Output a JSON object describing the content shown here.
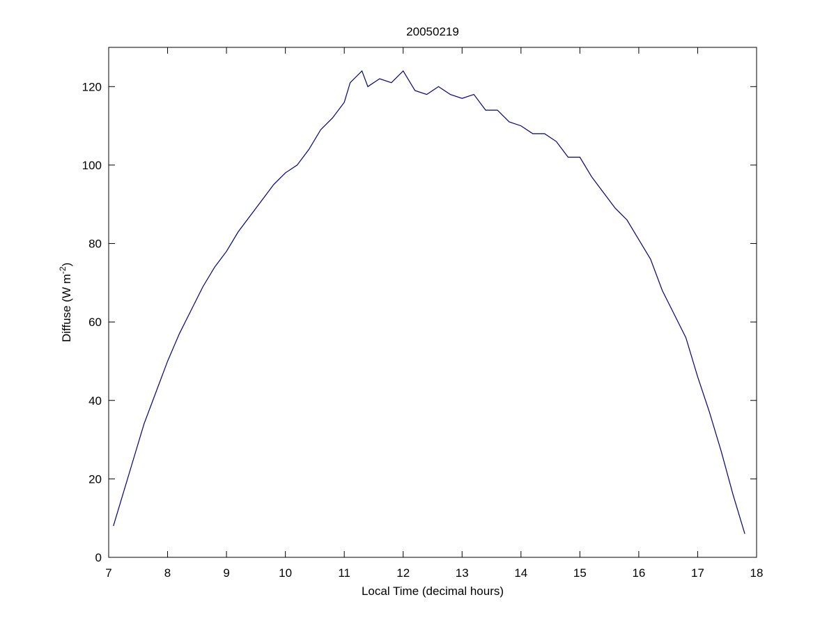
{
  "chart_data": {
    "type": "line",
    "title": "20050219",
    "xlabel": "Local Time (decimal hours)",
    "ylabel": [
      "Diffuse (W m",
      "-2",
      ")"
    ],
    "x": [
      7.08,
      7.2,
      7.4,
      7.6,
      7.8,
      8.0,
      8.2,
      8.3,
      8.4,
      8.6,
      8.8,
      9.0,
      9.2,
      9.4,
      9.6,
      9.8,
      10.0,
      10.2,
      10.4,
      10.6,
      10.8,
      11.0,
      11.1,
      11.3,
      11.4,
      11.6,
      11.8,
      12.0,
      12.2,
      12.4,
      12.6,
      12.8,
      13.0,
      13.2,
      13.4,
      13.6,
      13.8,
      14.0,
      14.2,
      14.4,
      14.6,
      14.8,
      15.0,
      15.2,
      15.4,
      15.6,
      15.8,
      16.0,
      16.2,
      16.4,
      16.6,
      16.8,
      17.0,
      17.2,
      17.4,
      17.6,
      17.8
    ],
    "series": [
      {
        "name": "Diffuse",
        "color": "#000080",
        "values": [
          8,
          14,
          24,
          34,
          42,
          50,
          57,
          60,
          63,
          69,
          74,
          78,
          83,
          87,
          91,
          95,
          98,
          100,
          104,
          109,
          112,
          116,
          121,
          124,
          120,
          122,
          121,
          124,
          119,
          118,
          120,
          118,
          117,
          118,
          114,
          114,
          111,
          110,
          108,
          108,
          106,
          102,
          102,
          97,
          93,
          89,
          86,
          81,
          76,
          68,
          62,
          56,
          46,
          37,
          27,
          16,
          6
        ]
      }
    ],
    "xlim": [
      7,
      18
    ],
    "xticks": [
      7,
      8,
      9,
      10,
      11,
      12,
      13,
      14,
      15,
      16,
      17,
      18
    ],
    "ylim": [
      0,
      130
    ],
    "yticks": [
      0,
      20,
      40,
      60,
      80,
      100,
      120
    ]
  }
}
